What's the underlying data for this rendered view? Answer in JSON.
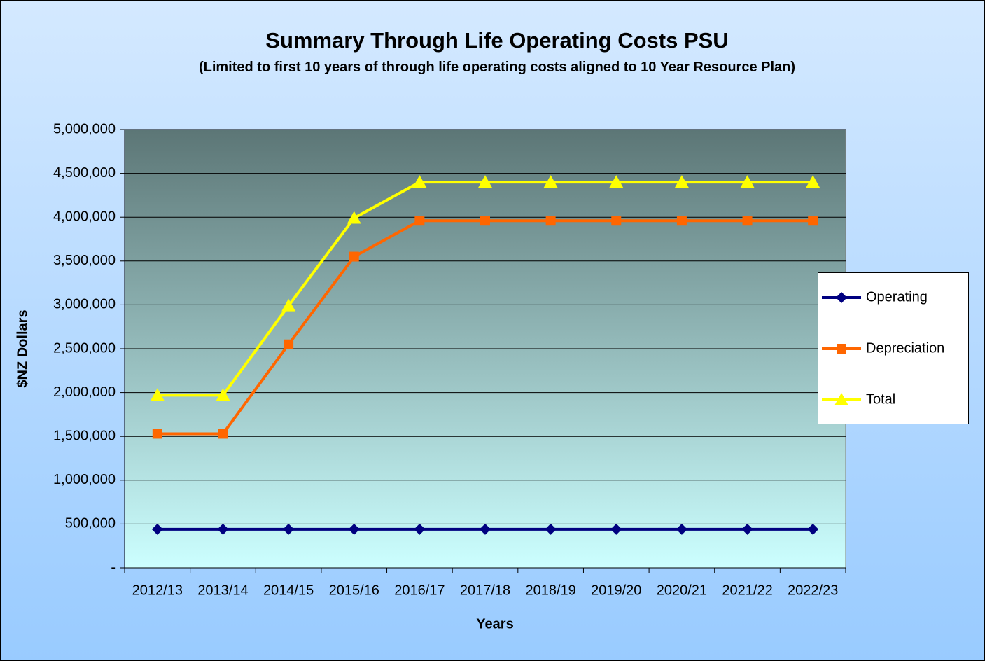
{
  "chart_data": {
    "type": "line",
    "title": "Summary Through Life Operating Costs PSU",
    "subtitle": "(Limited to first 10 years of through life operating costs aligned to 10 Year Resource Plan)",
    "x_label": "Years",
    "y_label": "$NZ Dollars",
    "categories": [
      "2012/13",
      "2013/14",
      "2014/15",
      "2015/16",
      "2016/17",
      "2017/18",
      "2018/19",
      "2019/20",
      "2020/21",
      "2021/22",
      "2022/23"
    ],
    "series": [
      {
        "name": "Operating",
        "color": "#000080",
        "marker": "diamond",
        "values": [
          440000,
          440000,
          440000,
          440000,
          440000,
          440000,
          440000,
          440000,
          440000,
          440000,
          440000
        ]
      },
      {
        "name": "Depreciation",
        "color": "#ff6600",
        "marker": "square",
        "values": [
          1530000,
          1530000,
          2550000,
          3550000,
          3960000,
          3960000,
          3960000,
          3960000,
          3960000,
          3960000,
          3960000
        ]
      },
      {
        "name": "Total",
        "color": "#ffff00",
        "marker": "triangle",
        "values": [
          1970000,
          1970000,
          2990000,
          3990000,
          4400000,
          4400000,
          4400000,
          4400000,
          4400000,
          4400000,
          4400000
        ]
      }
    ],
    "ylim": [
      0,
      5000000
    ],
    "yticks": [
      {
        "value": 0,
        "label": "-"
      },
      {
        "value": 500000,
        "label": "500,000"
      },
      {
        "value": 1000000,
        "label": "1,000,000"
      },
      {
        "value": 1500000,
        "label": "1,500,000"
      },
      {
        "value": 2000000,
        "label": "2,000,000"
      },
      {
        "value": 2500000,
        "label": "2,500,000"
      },
      {
        "value": 3000000,
        "label": "3,000,000"
      },
      {
        "value": 3500000,
        "label": "3,500,000"
      },
      {
        "value": 4000000,
        "label": "4,000,000"
      },
      {
        "value": 4500000,
        "label": "4,500,000"
      },
      {
        "value": 5000000,
        "label": "5,000,000"
      }
    ],
    "grid": true,
    "legend": "right"
  }
}
